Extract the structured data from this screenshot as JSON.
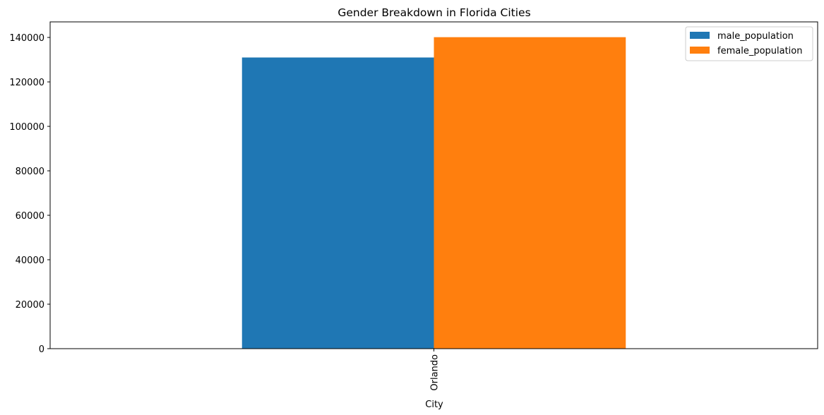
{
  "chart_data": {
    "type": "bar",
    "title": "Gender Breakdown in Florida Cities",
    "xlabel": "City",
    "ylabel": "",
    "categories": [
      "Orlando"
    ],
    "series": [
      {
        "name": "male_population",
        "values": [
          130980
        ],
        "color": "#1f77b4"
      },
      {
        "name": "female_population",
        "values": [
          140120
        ],
        "color": "#ff7f0e"
      }
    ],
    "ylim": [
      0,
      147000
    ],
    "yticks": [
      0,
      20000,
      40000,
      60000,
      80000,
      100000,
      120000,
      140000
    ],
    "x_tick_rotation_deg": 90,
    "grid": false,
    "legend_position": "top-right"
  }
}
